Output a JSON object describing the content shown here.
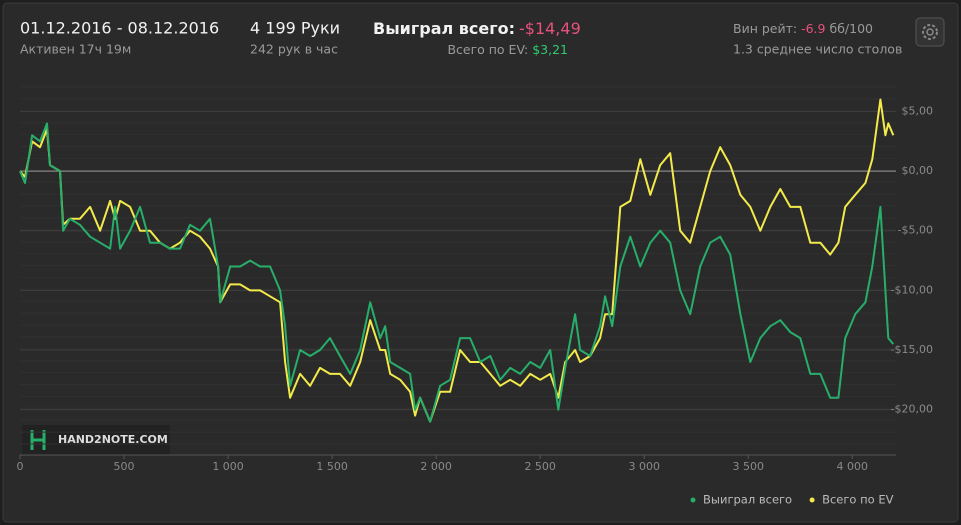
{
  "header": {
    "period": "01.12.2016 - 08.12.2016",
    "active": "Активен 17ч 19м",
    "hands": "4 199 Руки",
    "hands_per_hour": "242 рук в час",
    "won_label": "Выиграл всего:",
    "won_value": "-$14,49",
    "ev_label": "Всего по EV:",
    "ev_value": "$3,21",
    "winrate_label": "Вин рейт:",
    "winrate_value": "-6.9",
    "winrate_unit": "бб/100",
    "tables": "1.3 среднее число столов"
  },
  "logo": "HAND2NOTE.COM",
  "chart_data": {
    "type": "line",
    "x": [
      0,
      24,
      58,
      96,
      130,
      144,
      192,
      207,
      240,
      288,
      337,
      385,
      433,
      457,
      481,
      529,
      577,
      625,
      673,
      721,
      769,
      817,
      865,
      913,
      952,
      962,
      1010,
      1058,
      1106,
      1154,
      1202,
      1250,
      1274,
      1298,
      1346,
      1394,
      1442,
      1490,
      1538,
      1587,
      1635,
      1683,
      1731,
      1755,
      1779,
      1827,
      1875,
      1899,
      1923,
      1971,
      2019,
      2067,
      2115,
      2163,
      2212,
      2260,
      2308,
      2356,
      2404,
      2452,
      2500,
      2548,
      2587,
      2620,
      2668,
      2692,
      2740,
      2788,
      2812,
      2846,
      2885,
      2933,
      2981,
      3029,
      3077,
      3125,
      3173,
      3221,
      3269,
      3317,
      3365,
      3413,
      3462,
      3510,
      3558,
      3606,
      3654,
      3702,
      3750,
      3798,
      3846,
      3894,
      3933,
      3966,
      4014,
      4063,
      4096,
      4135,
      4159,
      4173,
      4197
    ],
    "series": [
      {
        "name": "Выиграл всего",
        "color": "#27ae6a",
        "values": [
          0,
          -1,
          3,
          2.5,
          4,
          0.5,
          0,
          -5,
          -4,
          -4.5,
          -5.5,
          -6,
          -6.5,
          -3,
          -6.5,
          -5,
          -3,
          -6,
          -6,
          -6.5,
          -6.5,
          -4.5,
          -5,
          -4,
          -8,
          -11,
          -8,
          -8,
          -7.5,
          -8,
          -8,
          -10,
          -13,
          -18,
          -15,
          -15.5,
          -15,
          -14,
          -15.5,
          -17,
          -15,
          -11,
          -14,
          -13,
          -16,
          -16.5,
          -17,
          -20,
          -19,
          -21,
          -18,
          -17.5,
          -14,
          -14,
          -16,
          -15.5,
          -17.5,
          -16.5,
          -17,
          -16,
          -16.5,
          -15,
          -20,
          -16.5,
          -12,
          -15,
          -15.5,
          -13,
          -10.5,
          -13,
          -8,
          -5.5,
          -8,
          -6,
          -5,
          -6,
          -10,
          -12,
          -8,
          -6,
          -5.5,
          -7,
          -12,
          -16,
          -14,
          -13,
          -12.5,
          -13.5,
          -14,
          -17,
          -17,
          -19,
          -19,
          -14,
          -12,
          -11,
          -8,
          -3,
          -10,
          -14,
          -14.5
        ]
      },
      {
        "name": "Всего по EV",
        "color": "#f2ea4a",
        "values": [
          0,
          -0.5,
          2.5,
          2,
          3.5,
          0.5,
          0,
          -4.5,
          -4,
          -4,
          -3,
          -5,
          -2.5,
          -4,
          -2.5,
          -3,
          -5,
          -5,
          -6,
          -6.5,
          -6,
          -5,
          -5.5,
          -6.5,
          -8,
          -11,
          -9.5,
          -9.5,
          -10,
          -10,
          -10.5,
          -11,
          -16,
          -19,
          -17,
          -18,
          -16.5,
          -17,
          -17,
          -18,
          -16,
          -12.5,
          -15,
          -15,
          -17,
          -17.5,
          -18.5,
          -20.5,
          -19,
          -21,
          -18.5,
          -18.5,
          -15,
          -16,
          -16,
          -17,
          -18,
          -17.5,
          -18,
          -17,
          -17.5,
          -17,
          -19,
          -16,
          -15,
          -16,
          -15.5,
          -14,
          -12,
          -12,
          -3,
          -2.5,
          1,
          -2,
          0.5,
          1.5,
          -5,
          -6,
          -3,
          0,
          2,
          0.5,
          -2,
          -3,
          -5,
          -3,
          -1.5,
          -3,
          -3,
          -6,
          -6,
          -7,
          -6,
          -3,
          -2,
          -1,
          1,
          6,
          3,
          4,
          3
        ]
      }
    ],
    "xlim": [
      0,
      4210
    ],
    "ylim": [
      -23.8,
      7.3
    ],
    "xticks": [
      0,
      500,
      {
        "value": 1000,
        "label": "1 000"
      },
      {
        "value": 1500,
        "label": "1 500"
      },
      {
        "value": 2000,
        "label": "2 000"
      },
      {
        "value": 2500,
        "label": "2 500"
      },
      {
        "value": 3000,
        "label": "3 000"
      },
      {
        "value": 3500,
        "label": "3 500"
      },
      {
        "value": 4000,
        "label": "4 000"
      }
    ],
    "yticks": [
      {
        "value": 5,
        "label": "$5,00"
      },
      {
        "value": 0,
        "label": "$0,00"
      },
      {
        "value": -5,
        "label": "-$5,00"
      },
      {
        "value": -10,
        "label": "-$10,00"
      },
      {
        "value": -15,
        "label": "-$15,00"
      },
      {
        "value": -20,
        "label": "-$20,00"
      }
    ],
    "grid": true,
    "legend": "bottom-right"
  }
}
